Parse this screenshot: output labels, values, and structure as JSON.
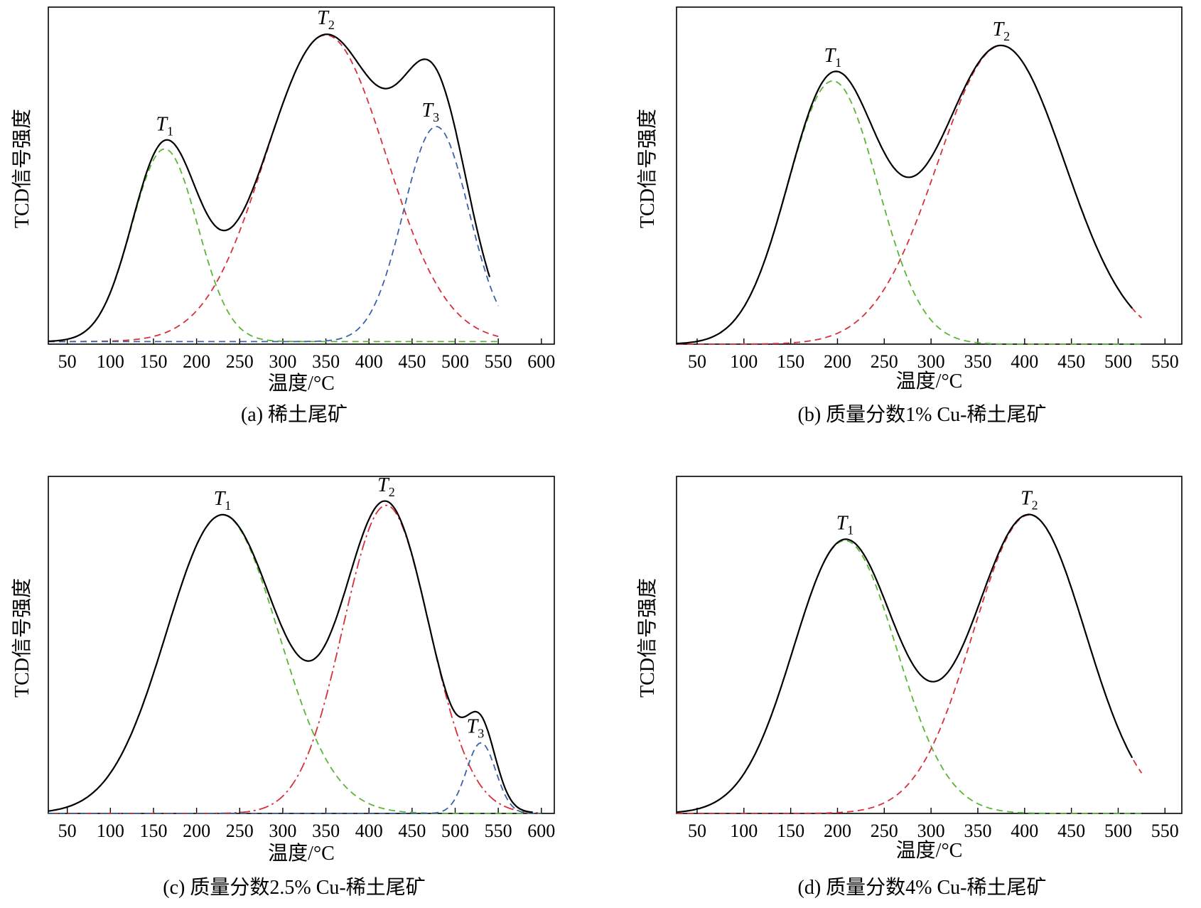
{
  "panels": [
    {
      "id": "a",
      "caption": "(a) 稀土尾矿",
      "xlabel": "温度/°C",
      "ylabel": "TCD信号强度",
      "chart_data": {
        "type": "line",
        "title": "(a) 稀土尾矿",
        "xlabel": "温度/°C",
        "ylabel": "TCD信号强度",
        "xlim": [
          28,
          615
        ],
        "ylim": [
          0,
          1.05
        ],
        "xticks": [
          50,
          100,
          150,
          200,
          250,
          300,
          350,
          400,
          450,
          500,
          550,
          600
        ],
        "x_range": [
          28,
          540
        ],
        "baseline": 0.008,
        "series": [
          {
            "name": "T1",
            "label": "T",
            "sub": "1",
            "style": "dashed",
            "color": "#5ab534",
            "peaks": [
              {
                "center": 163,
                "height": 0.6,
                "width": 38
              }
            ]
          },
          {
            "name": "T2",
            "label": "T",
            "sub": "2",
            "style": "dashed",
            "color": "#d7303a",
            "peaks": [
              {
                "center": 350,
                "height": 0.955,
                "width": 70
              }
            ]
          },
          {
            "name": "T3",
            "label": "T",
            "sub": "3",
            "style": "dashed",
            "color": "#3b63a8",
            "peaks": [
              {
                "center": 478,
                "height": 0.67,
                "width": 38
              }
            ]
          },
          {
            "name": "sum",
            "style": "solid",
            "color": "#000000",
            "sum": true
          }
        ]
      }
    },
    {
      "id": "b",
      "caption": "(b) 质量分数1% Cu-稀土尾矿",
      "xlabel": "温度/°C",
      "ylabel": "TCD信号强度",
      "chart_data": {
        "type": "line",
        "title": "(b) 质量分数1% Cu-稀土尾矿",
        "xlabel": "温度/°C",
        "ylabel": "TCD信号强度",
        "xlim": [
          28,
          568
        ],
        "ylim": [
          0,
          1.05
        ],
        "xticks": [
          50,
          100,
          150,
          200,
          250,
          300,
          350,
          400,
          450,
          500,
          550
        ],
        "x_range": [
          28,
          515
        ],
        "baseline": 0,
        "series": [
          {
            "name": "T1",
            "label": "T",
            "sub": "1",
            "style": "dashed",
            "color": "#5ab534",
            "peaks": [
              {
                "center": 195,
                "height": 0.82,
                "width": 48
              }
            ]
          },
          {
            "name": "T2",
            "label": "T",
            "sub": "2",
            "style": "dashed",
            "color": "#d7303a",
            "peaks": [
              {
                "center": 375,
                "height": 0.93,
                "width": 68
              }
            ]
          },
          {
            "name": "sum",
            "style": "solid",
            "color": "#000000",
            "sum": true
          }
        ]
      }
    },
    {
      "id": "c",
      "caption": "(c) 质量分数2.5% Cu-稀土尾矿",
      "xlabel": "温度/°C",
      "ylabel": "TCD信号强度",
      "chart_data": {
        "type": "line",
        "title": "(c) 质量分数2.5% Cu-稀土尾矿",
        "xlabel": "温度/°C",
        "ylabel": "TCD信号强度",
        "xlim": [
          28,
          615
        ],
        "ylim": [
          0,
          1.05
        ],
        "xticks": [
          50,
          100,
          150,
          200,
          250,
          300,
          350,
          400,
          450,
          500,
          550,
          600
        ],
        "x_range": [
          28,
          590
        ],
        "baseline": 0,
        "series": [
          {
            "name": "T1",
            "label": "T",
            "sub": "1",
            "style": "dashed",
            "color": "#5ab534",
            "peaks": [
              {
                "center": 230,
                "height": 0.93,
                "width": 65
              }
            ]
          },
          {
            "name": "T2",
            "label": "T",
            "sub": "2",
            "style": "dashdot",
            "color": "#d7303a",
            "peaks": [
              {
                "center": 420,
                "height": 0.96,
                "width": 50
              }
            ]
          },
          {
            "name": "T3",
            "label": "T",
            "sub": "3",
            "style": "dashed",
            "color": "#3b63a8",
            "peaks": [
              {
                "center": 530,
                "height": 0.22,
                "width": 17
              }
            ]
          },
          {
            "name": "sum",
            "style": "solid",
            "color": "#000000",
            "sum": true
          }
        ]
      }
    },
    {
      "id": "d",
      "caption": "(d) 质量分数4% Cu-稀土尾矿",
      "xlabel": "温度/°C",
      "ylabel": "TCD信号强度",
      "chart_data": {
        "type": "line",
        "title": "(d) 质量分数4% Cu-稀土尾矿",
        "xlabel": "温度/°C",
        "ylabel": "TCD信号强度",
        "xlim": [
          28,
          568
        ],
        "ylim": [
          0,
          1.05
        ],
        "xticks": [
          50,
          100,
          150,
          200,
          250,
          300,
          350,
          400,
          450,
          500,
          550
        ],
        "x_range": [
          28,
          515
        ],
        "baseline": 0,
        "series": [
          {
            "name": "T1",
            "label": "T",
            "sub": "1",
            "style": "dashed",
            "color": "#5ab534",
            "peaks": [
              {
                "center": 208,
                "height": 0.85,
                "width": 55
              }
            ]
          },
          {
            "name": "T2",
            "label": "T",
            "sub": "2",
            "style": "dashed",
            "color": "#d7303a",
            "peaks": [
              {
                "center": 405,
                "height": 0.93,
                "width": 60
              }
            ]
          },
          {
            "name": "sum",
            "style": "solid",
            "color": "#000000",
            "sum": true
          }
        ]
      }
    }
  ]
}
